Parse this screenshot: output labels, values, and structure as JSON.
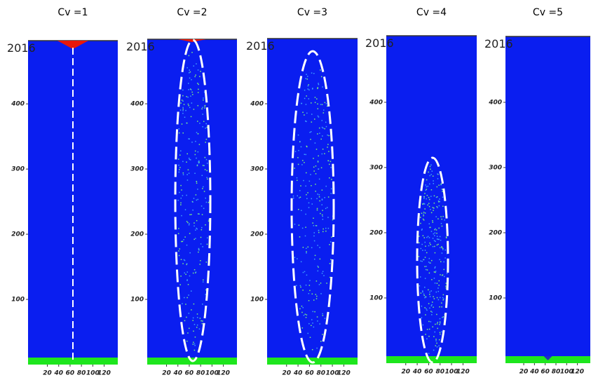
{
  "panels": [
    {
      "title": "Cv =1",
      "stamp": "2016",
      "xlim": [
        -14,
        144
      ],
      "xticks": [
        20,
        40,
        60,
        80,
        100,
        120
      ],
      "ylim": [
        0,
        497
      ],
      "yticks": [
        100,
        200,
        300,
        400
      ]
    },
    {
      "title": "Cv =2",
      "stamp": "2016",
      "xlim": [
        -14,
        144
      ],
      "xticks": [
        20,
        40,
        60,
        80,
        100,
        120
      ],
      "ylim": [
        0,
        499
      ],
      "yticks": [
        100,
        200,
        300,
        400
      ]
    },
    {
      "title": "Cv =3",
      "stamp": "2016",
      "xlim": [
        -14,
        144
      ],
      "xticks": [
        20,
        40,
        60,
        80,
        100,
        120
      ],
      "ylim": [
        0,
        500
      ],
      "yticks": [
        100,
        200,
        300,
        400
      ]
    },
    {
      "title": "Cv =4",
      "stamp": "2016",
      "xlim": [
        -14,
        144
      ],
      "xticks": [
        20,
        40,
        60,
        80,
        100,
        120
      ],
      "ylim": [
        0,
        502
      ],
      "yticks": [
        100,
        200,
        300,
        400
      ]
    },
    {
      "title": "Cv =5",
      "stamp": "2016",
      "xlim": [
        -14,
        144
      ],
      "xticks": [
        20,
        40,
        60,
        80,
        100,
        120
      ],
      "ylim": [
        0,
        501
      ],
      "yticks": [
        100,
        200,
        300,
        400
      ]
    }
  ]
}
